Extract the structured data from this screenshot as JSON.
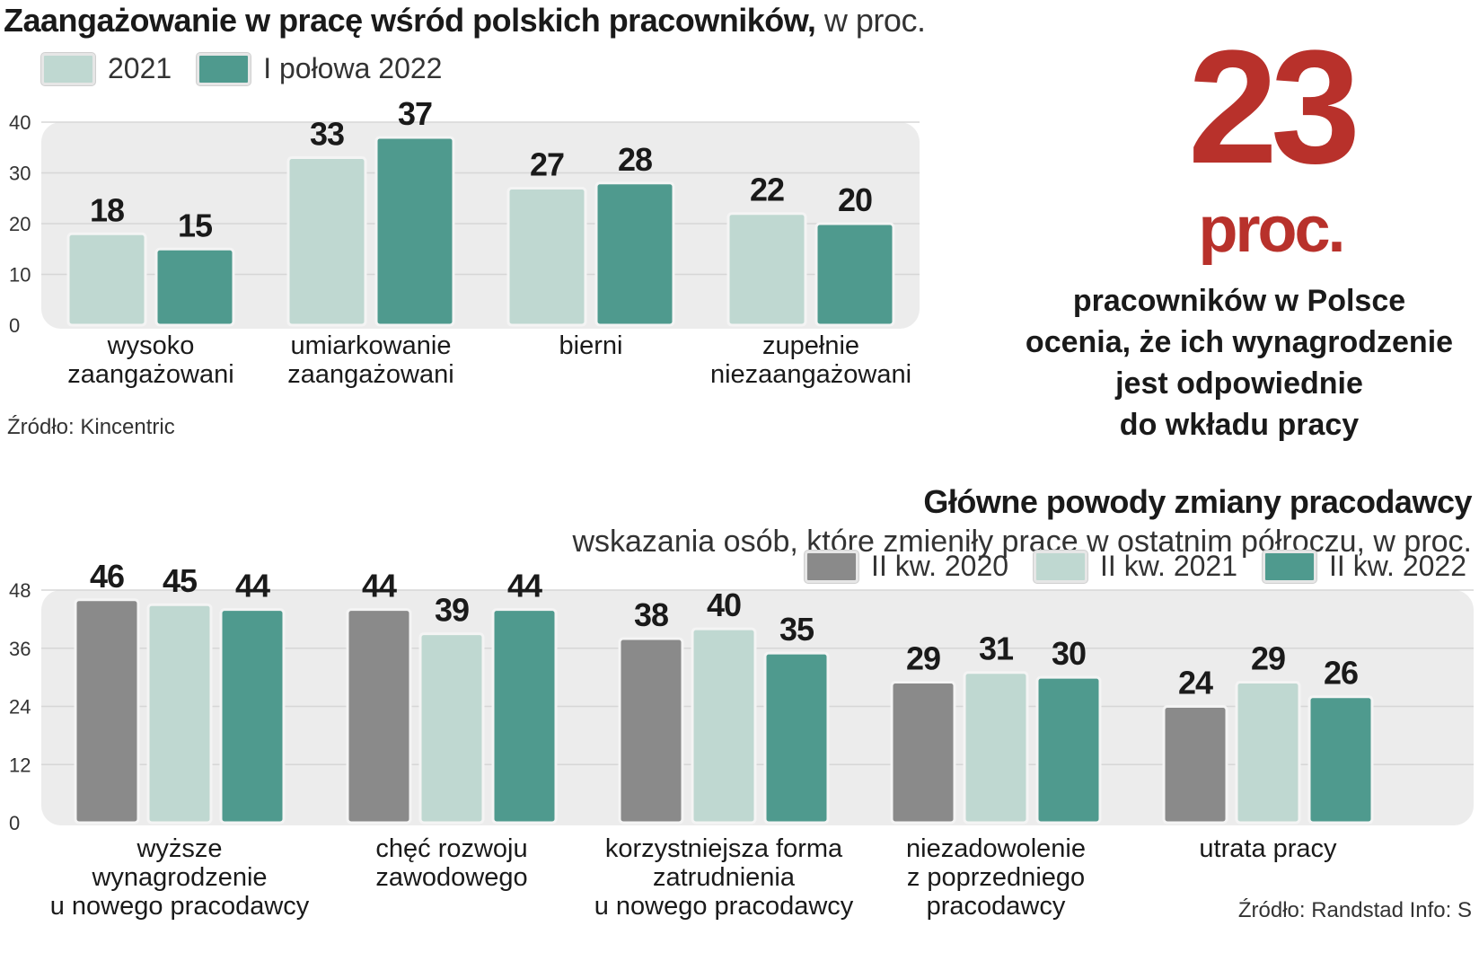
{
  "colors": {
    "light": "#bfd8d1",
    "teal": "#4f9a8e",
    "gray": "#8a8a8a",
    "accent": "#b8312b",
    "plot_bg": "#ececec"
  },
  "top": {
    "title_bold": "Zaangażowanie w pracę wśród polskich pracowników,",
    "title_light": " w proc.",
    "source": "Źródło: Kincentric"
  },
  "highlight": {
    "number": "23",
    "unit": "proc.",
    "desc_lines": [
      "pracowników w Polsce",
      "ocenia, że ich wynagrodzenie",
      "jest odpowiednie",
      "do wkładu pracy"
    ]
  },
  "bottom": {
    "title": "Główne powody zmiany pracodawcy",
    "subtitle": "wskazania osób, które zmieniły pracę  w ostatnim półroczu, w proc.",
    "source": "Źródło: Randstad   Info: S"
  },
  "chart_data": [
    {
      "type": "bar",
      "title": "Zaangażowanie w pracę wśród polskich pracowników, w proc.",
      "categories": [
        [
          "wysoko",
          "zaangażowani"
        ],
        [
          "umiarkowanie",
          "zaangażowani"
        ],
        [
          "bierni"
        ],
        [
          "zupełnie",
          "niezaangażowani"
        ]
      ],
      "series": [
        {
          "name": "2021",
          "color_key": "light",
          "values": [
            18,
            33,
            27,
            22
          ]
        },
        {
          "name": "I połowa 2022",
          "color_key": "teal",
          "values": [
            15,
            37,
            28,
            20
          ]
        }
      ],
      "yticks": [
        0,
        10,
        20,
        30,
        40
      ],
      "ylim": [
        0,
        40
      ],
      "grid": true,
      "legend": "top-left"
    },
    {
      "type": "bar",
      "title": "Główne powody zmiany pracodawcy",
      "categories": [
        [
          "wyższe",
          "wynagrodzenie",
          "u nowego pracodawcy"
        ],
        [
          "chęć rozwoju",
          "zawodowego"
        ],
        [
          "korzystniejsza forma",
          "zatrudnienia",
          "u nowego pracodawcy"
        ],
        [
          "niezadowolenie",
          "z poprzedniego",
          "pracodawcy"
        ],
        [
          "utrata pracy"
        ]
      ],
      "series": [
        {
          "name": "II kw. 2020",
          "color_key": "gray",
          "values": [
            46,
            44,
            38,
            29,
            24
          ]
        },
        {
          "name": "II kw. 2021",
          "color_key": "light",
          "values": [
            45,
            39,
            40,
            31,
            29
          ]
        },
        {
          "name": "II kw. 2022",
          "color_key": "teal",
          "values": [
            44,
            44,
            35,
            30,
            26
          ]
        }
      ],
      "yticks": [
        0,
        12,
        24,
        36,
        48
      ],
      "ylim": [
        0,
        48
      ],
      "grid": true,
      "legend": "top-right"
    }
  ]
}
